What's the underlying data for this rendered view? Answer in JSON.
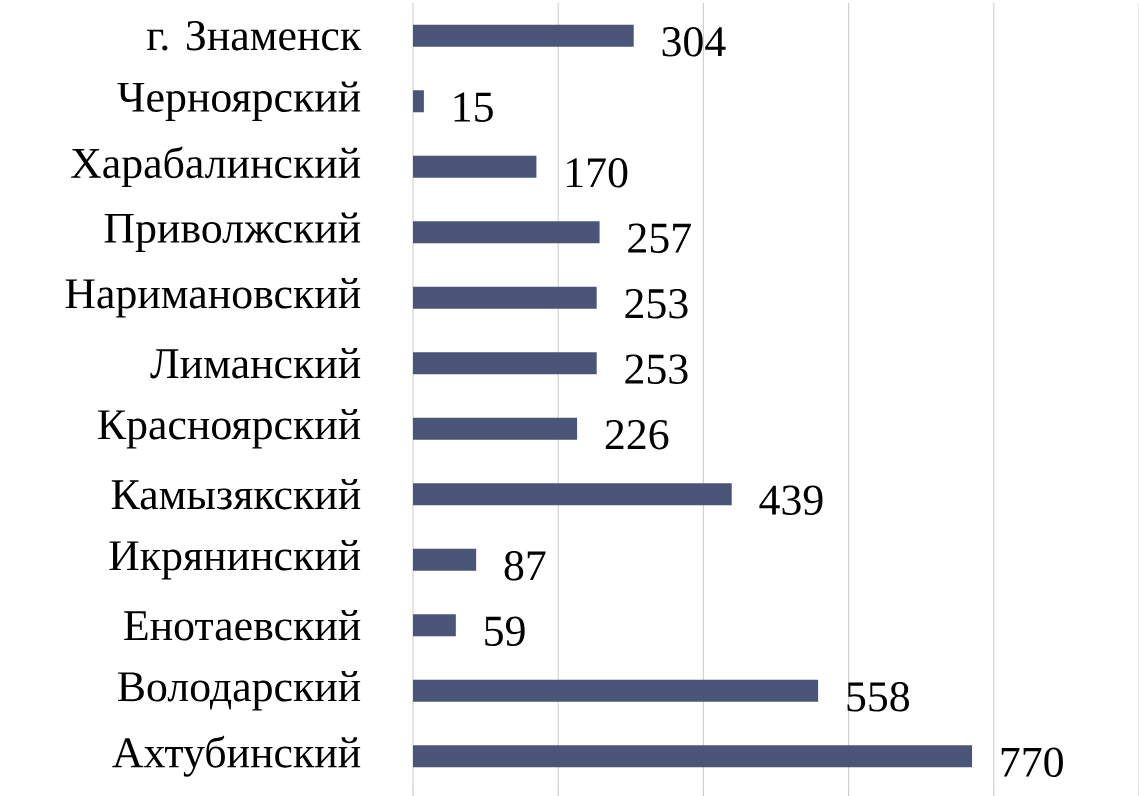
{
  "chart_data": {
    "type": "bar",
    "orientation": "horizontal",
    "categories": [
      "г. Знаменск",
      "Черноярский",
      "Харабалинский",
      "Приволжский",
      "Наримановский",
      "Лиманский",
      "Красноярский",
      "Камызякский",
      "Икрянинский",
      "Енотаевский",
      "Володарский",
      "Ахтубинский"
    ],
    "values": [
      304,
      15,
      170,
      257,
      253,
      253,
      226,
      439,
      87,
      59,
      558,
      770
    ],
    "color": "#4a5578",
    "xlim": [
      0,
      1000
    ],
    "xticks": [
      {
        "value": 0,
        "label": null
      },
      {
        "value": 200,
        "label": null
      },
      {
        "value": 400,
        "label": null
      },
      {
        "value": 600,
        "label": null
      },
      {
        "value": 800,
        "label": null
      },
      {
        "value": 1000,
        "label": null
      }
    ],
    "grid": "x",
    "tick_labels": "y",
    "data_labels": true
  }
}
